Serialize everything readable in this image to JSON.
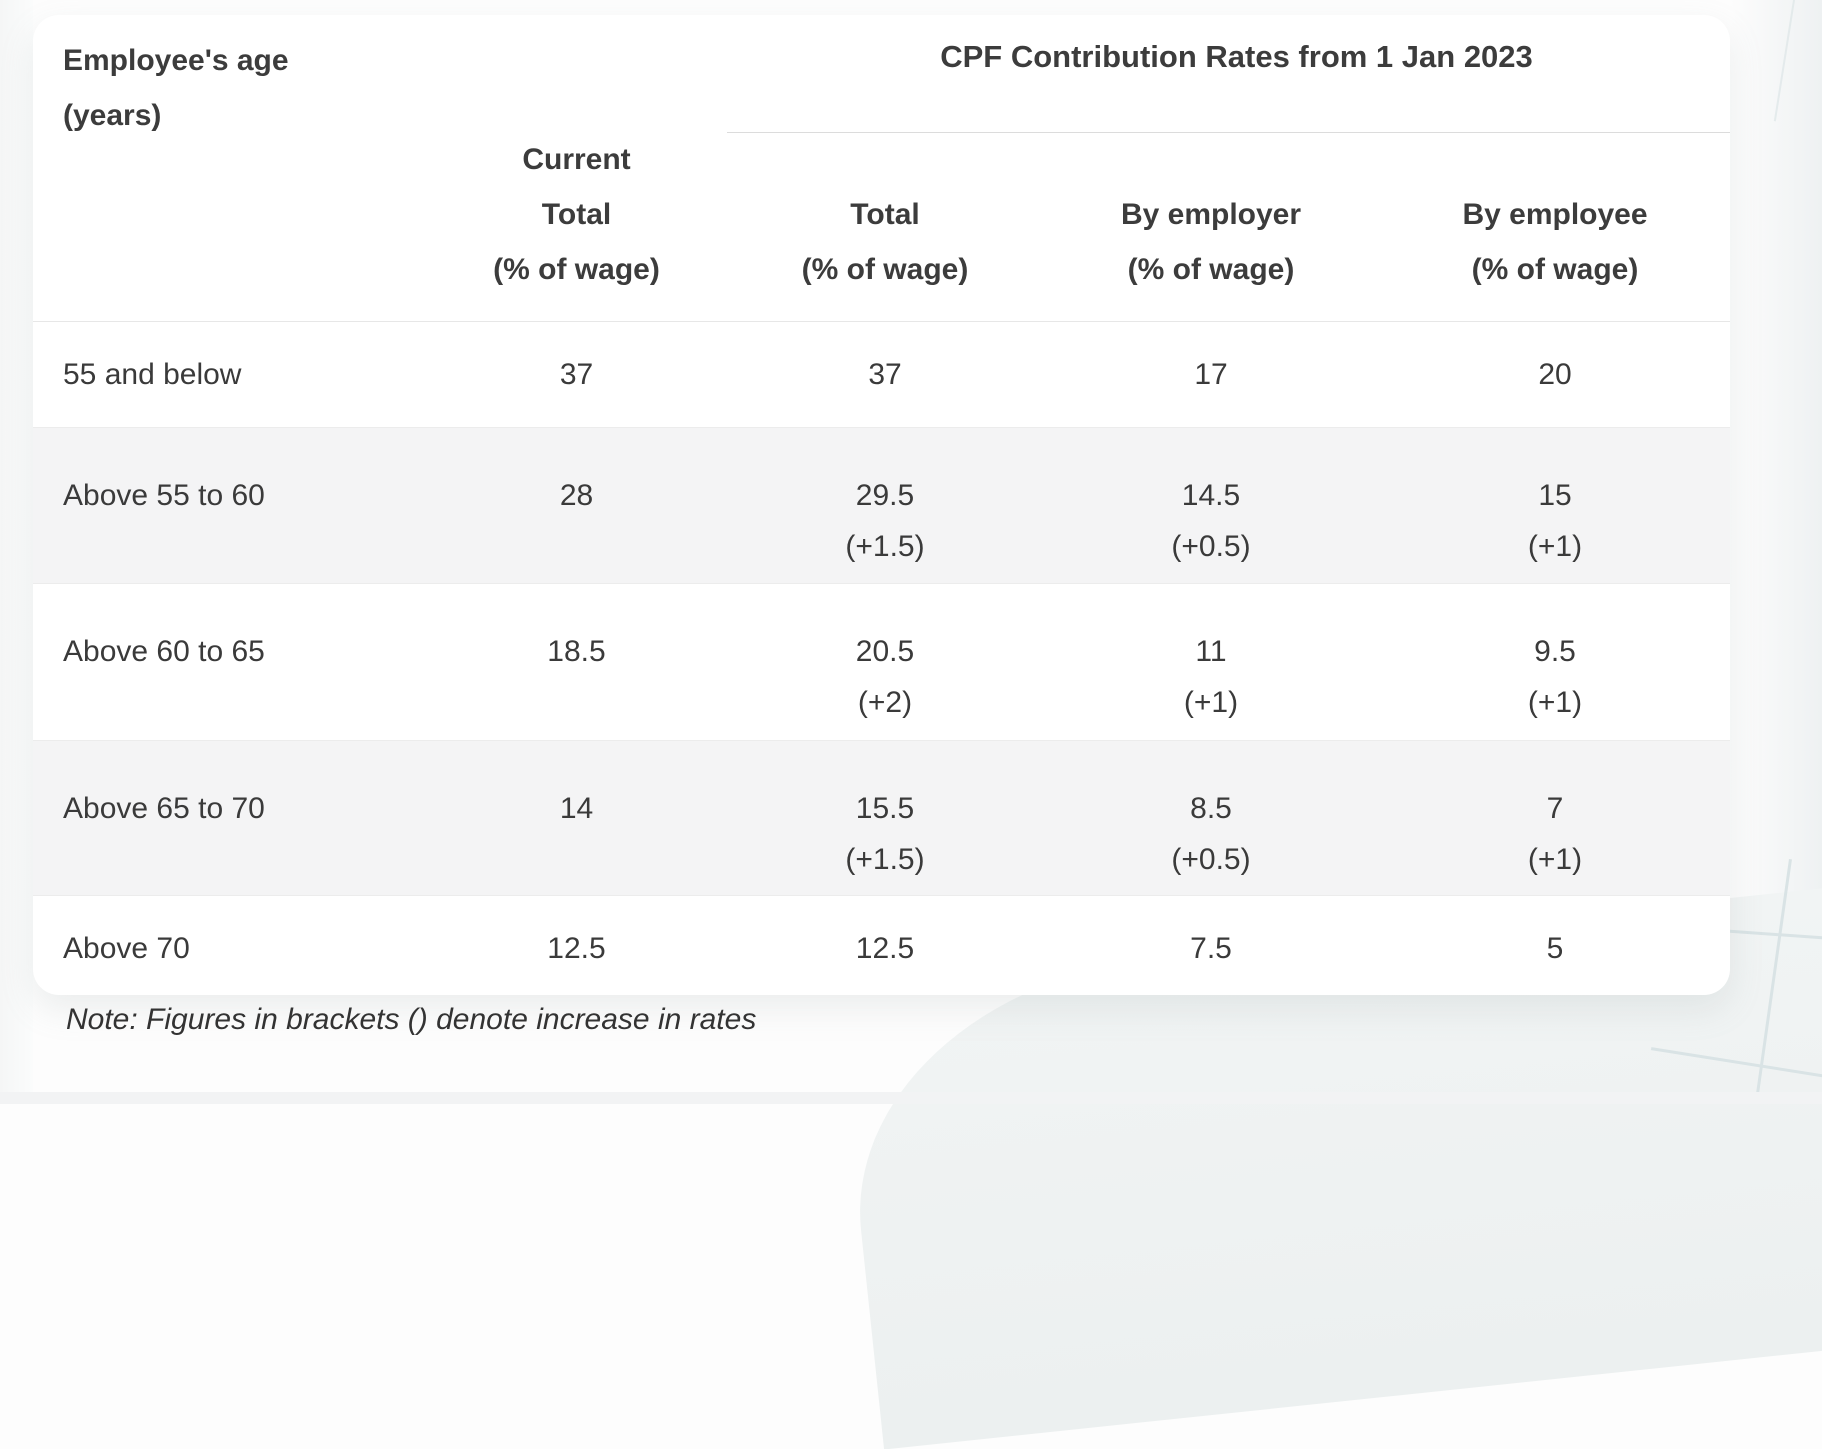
{
  "colors": {
    "card_background": "#ffffff",
    "stripe_row_background": "#f4f4f5",
    "text": "#3c3c3c",
    "divider": "#dcdcdc",
    "page_background": "#fdfdfd",
    "decor_line": "#d9e3e5"
  },
  "table": {
    "corner_header": "Employee's age\n(years)",
    "group_header": "CPF Contribution Rates from 1 Jan 2023",
    "col_headers": {
      "current_total": "Current\nTotal\n(% of wage)",
      "total": "Total\n(% of wage)",
      "by_employer": "By employer\n(% of wage)",
      "by_employee": "By employee\n(% of wage)"
    },
    "rows": [
      {
        "age": "55 and below",
        "cells": [
          {
            "v": "37"
          },
          {
            "v": "37"
          },
          {
            "v": "17"
          },
          {
            "v": "20"
          }
        ]
      },
      {
        "age": "Above 55 to 60",
        "cells": [
          {
            "v": "28"
          },
          {
            "v": "29.5",
            "d": "(+1.5)"
          },
          {
            "v": "14.5",
            "d": "(+0.5)"
          },
          {
            "v": "15",
            "d": "(+1)"
          }
        ]
      },
      {
        "age": "Above 60 to 65",
        "cells": [
          {
            "v": "18.5"
          },
          {
            "v": "20.5",
            "d": "(+2)"
          },
          {
            "v": "11",
            "d": "(+1)"
          },
          {
            "v": "9.5",
            "d": "(+1)"
          }
        ]
      },
      {
        "age": "Above 65 to 70",
        "cells": [
          {
            "v": "14"
          },
          {
            "v": "15.5",
            "d": "(+1.5)"
          },
          {
            "v": "8.5",
            "d": "(+0.5)"
          },
          {
            "v": "7",
            "d": "(+1)"
          }
        ]
      },
      {
        "age": "Above 70",
        "cells": [
          {
            "v": "12.5"
          },
          {
            "v": "12.5"
          },
          {
            "v": "7.5"
          },
          {
            "v": "5"
          }
        ]
      }
    ],
    "note": "Note: Figures in brackets () denote increase in rates"
  },
  "chart_data": {
    "type": "table",
    "title": "CPF Contribution Rates from 1 Jan 2023",
    "row_header": "Employee's age (years)",
    "columns": [
      "Current Total (% of wage)",
      "Total (% of wage)",
      "By employer (% of wage)",
      "By employee (% of wage)"
    ],
    "group_header_applies_to": [
      "Total (% of wage)",
      "By employer (% of wage)",
      "By employee (% of wage)"
    ],
    "rows": [
      {
        "age": "55 and below",
        "current_total": 37,
        "new_total": 37,
        "by_employer": 17,
        "by_employee": 20
      },
      {
        "age": "Above 55 to 60",
        "current_total": 28,
        "new_total": 29.5,
        "new_total_increase": 1.5,
        "by_employer": 14.5,
        "by_employer_increase": 0.5,
        "by_employee": 15,
        "by_employee_increase": 1
      },
      {
        "age": "Above 60 to 65",
        "current_total": 18.5,
        "new_total": 20.5,
        "new_total_increase": 2,
        "by_employer": 11,
        "by_employer_increase": 1,
        "by_employee": 9.5,
        "by_employee_increase": 1
      },
      {
        "age": "Above 65 to 70",
        "current_total": 14,
        "new_total": 15.5,
        "new_total_increase": 1.5,
        "by_employer": 8.5,
        "by_employer_increase": 0.5,
        "by_employee": 7,
        "by_employee_increase": 1
      },
      {
        "age": "Above 70",
        "current_total": 12.5,
        "new_total": 12.5,
        "by_employer": 7.5,
        "by_employee": 5
      }
    ],
    "note": "Note: Figures in brackets () denote increase in rates"
  }
}
